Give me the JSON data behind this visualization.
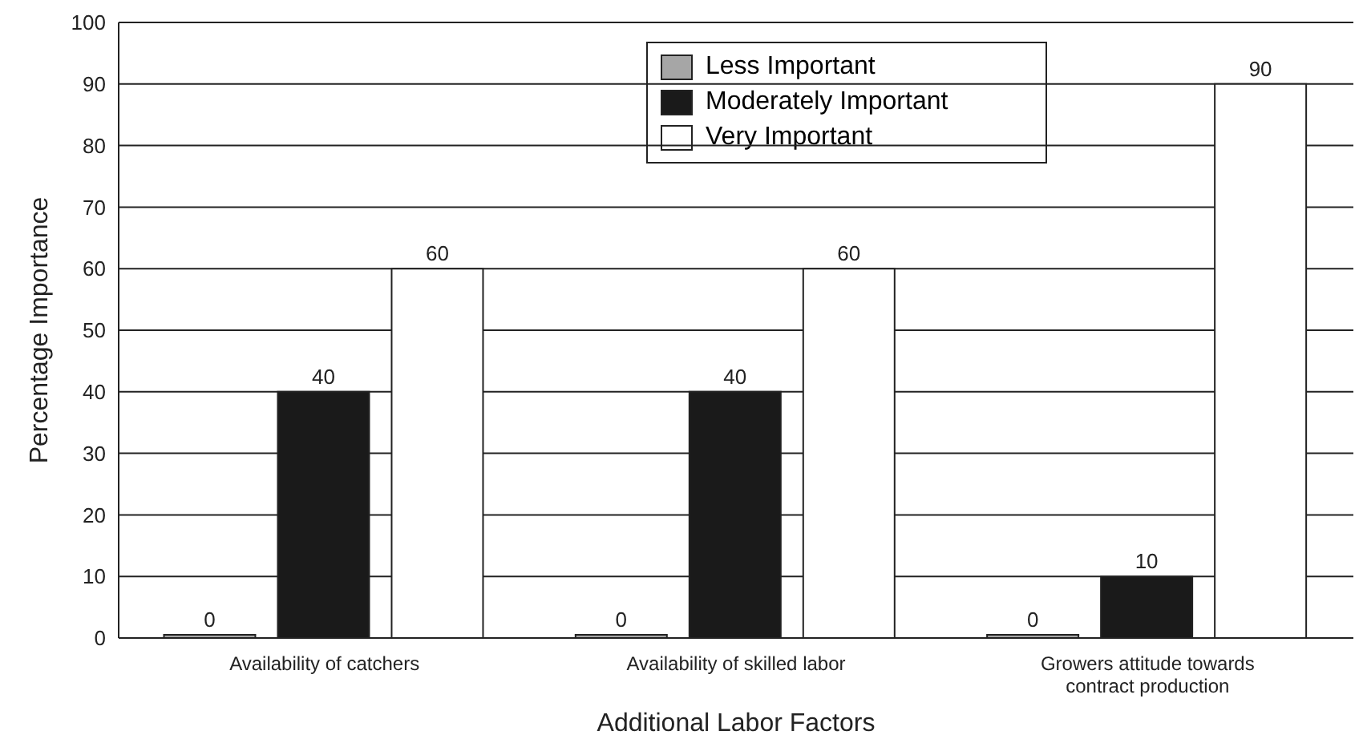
{
  "chart_data": {
    "type": "bar",
    "xlabel": "Additional Labor Factors",
    "ylabel": "Percentage Importance",
    "categories": [
      "Availability of catchers",
      "Availability of skilled labor",
      "Growers attitude towards contract production"
    ],
    "series": [
      {
        "name": "Less Important",
        "color": "#a6a6a6",
        "values": [
          0,
          0,
          0
        ]
      },
      {
        "name": "Moderately Important",
        "color": "#1a1a1a",
        "values": [
          40,
          40,
          10
        ]
      },
      {
        "name": "Very Important",
        "color": "#ffffff",
        "values": [
          60,
          60,
          90
        ]
      }
    ],
    "ylim": [
      0,
      100
    ],
    "yticks": [
      0,
      10,
      20,
      30,
      40,
      50,
      60,
      70,
      80,
      90,
      100
    ],
    "grid": "y",
    "legend": "top",
    "data_labels": true
  }
}
